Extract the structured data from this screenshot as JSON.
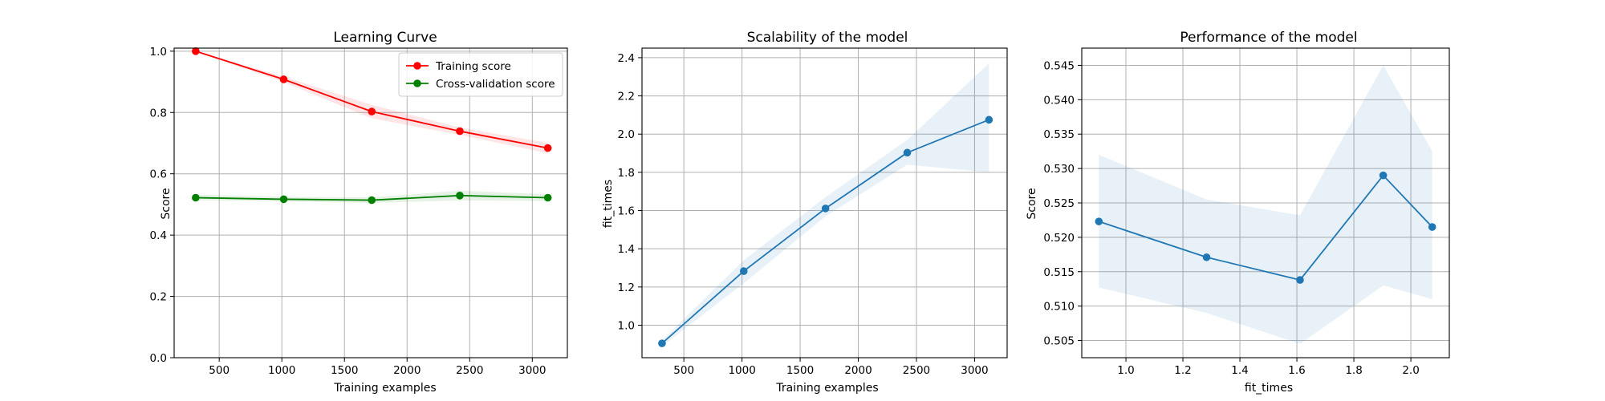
{
  "charts": [
    {
      "title": "Learning Curve",
      "xlabel": "Training examples",
      "ylabel": "Score"
    },
    {
      "title": "Scalability of the model",
      "xlabel": "Training examples",
      "ylabel": "fit_times"
    },
    {
      "title": "Performance of the model",
      "xlabel": "fit_times",
      "ylabel": "Score"
    }
  ],
  "chart_data": [
    {
      "type": "line",
      "title": "Learning Curve",
      "xlabel": "Training examples",
      "ylabel": "Score",
      "xlim": [
        140,
        3280
      ],
      "ylim": [
        0.0,
        1.01
      ],
      "xticks": [
        500,
        1000,
        1500,
        2000,
        2500,
        3000
      ],
      "yticks": [
        0.0,
        0.2,
        0.4,
        0.6,
        0.8,
        1.0
      ],
      "grid": true,
      "legend": "top-right",
      "x": [
        312,
        1015,
        1718,
        2421,
        3124
      ],
      "series": [
        {
          "name": "Training score",
          "color": "#ff0000",
          "values": [
            1.0,
            0.908,
            0.803,
            0.739,
            0.684
          ],
          "band_lower": [
            0.998,
            0.899,
            0.781,
            0.727,
            0.667
          ],
          "band_upper": [
            1.0,
            0.917,
            0.825,
            0.751,
            0.701
          ]
        },
        {
          "name": "Cross-validation score",
          "color": "#008000",
          "values": [
            0.522,
            0.517,
            0.514,
            0.529,
            0.522
          ],
          "band_lower": [
            0.513,
            0.51,
            0.505,
            0.513,
            0.511
          ],
          "band_upper": [
            0.532,
            0.525,
            0.523,
            0.545,
            0.533
          ]
        }
      ]
    },
    {
      "type": "line",
      "title": "Scalability of the model",
      "xlabel": "Training examples",
      "ylabel": "fit_times",
      "xlim": [
        140,
        3280
      ],
      "ylim": [
        0.83,
        2.45
      ],
      "xticks": [
        500,
        1000,
        1500,
        2000,
        2500,
        3000
      ],
      "yticks": [
        1.0,
        1.2,
        1.4,
        1.6,
        1.8,
        2.0,
        2.2,
        2.4
      ],
      "grid": true,
      "x": [
        312,
        1015,
        1718,
        2421,
        3124
      ],
      "series": [
        {
          "color": "#1f77b4",
          "values": [
            0.905,
            1.283,
            1.611,
            1.903,
            2.075
          ],
          "band_lower": [
            0.89,
            1.22,
            1.57,
            1.84,
            1.8
          ],
          "band_upper": [
            0.92,
            1.34,
            1.67,
            1.97,
            2.37
          ]
        }
      ]
    },
    {
      "type": "line",
      "title": "Performance of the model",
      "xlabel": "fit_times",
      "ylabel": "Score",
      "xlim": [
        0.845,
        2.135
      ],
      "ylim": [
        0.5025,
        0.5475
      ],
      "xticks": [
        1.0,
        1.2,
        1.4,
        1.6,
        1.8,
        2.0
      ],
      "yticks": [
        0.505,
        0.51,
        0.515,
        0.52,
        0.525,
        0.53,
        0.535,
        0.54,
        0.545
      ],
      "grid": true,
      "x": [
        0.905,
        1.283,
        1.611,
        1.903,
        2.075
      ],
      "series": [
        {
          "color": "#1f77b4",
          "values": [
            0.5223,
            0.5171,
            0.5138,
            0.529,
            0.5215
          ],
          "band_lower": [
            0.5127,
            0.509,
            0.5045,
            0.513,
            0.511
          ],
          "band_upper": [
            0.532,
            0.5255,
            0.5232,
            0.545,
            0.5325
          ]
        }
      ]
    }
  ]
}
